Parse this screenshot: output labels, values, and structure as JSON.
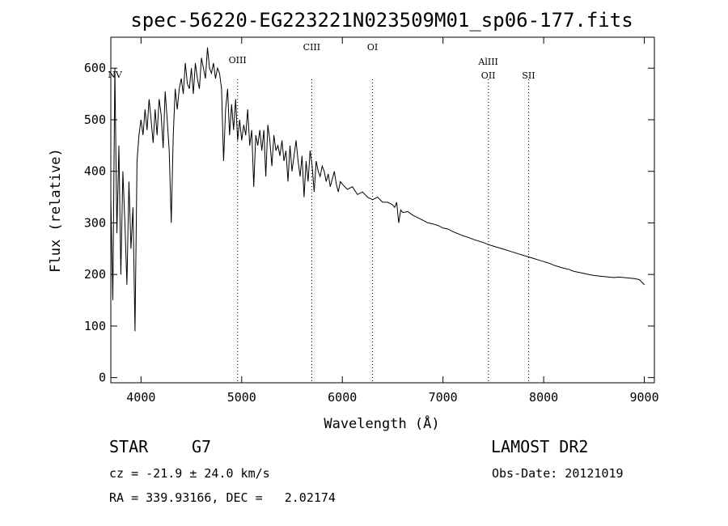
{
  "chart_data": {
    "type": "line",
    "title": "spec-56220-EG223221N023509M01_sp06-177.fits",
    "xlabel": "Wavelength (Å)",
    "ylabel": "Flux (relative)",
    "xlim": [
      3700,
      9100
    ],
    "ylim": [
      -10,
      660
    ],
    "x_ticks": [
      4000,
      5000,
      6000,
      7000,
      8000,
      9000
    ],
    "y_ticks": [
      0,
      100,
      200,
      300,
      400,
      500,
      600
    ],
    "grid": false,
    "series": [
      {
        "name": "spectrum",
        "x": [
          3700,
          3720,
          3740,
          3760,
          3780,
          3800,
          3820,
          3840,
          3860,
          3880,
          3900,
          3920,
          3940,
          3960,
          3980,
          4000,
          4020,
          4040,
          4060,
          4080,
          4100,
          4120,
          4140,
          4160,
          4180,
          4200,
          4220,
          4240,
          4260,
          4280,
          4300,
          4320,
          4340,
          4360,
          4380,
          4400,
          4420,
          4440,
          4460,
          4480,
          4500,
          4520,
          4540,
          4560,
          4580,
          4600,
          4620,
          4640,
          4660,
          4680,
          4700,
          4720,
          4740,
          4760,
          4780,
          4800,
          4820,
          4840,
          4860,
          4880,
          4900,
          4920,
          4940,
          4960,
          4980,
          5000,
          5020,
          5040,
          5060,
          5080,
          5100,
          5120,
          5140,
          5160,
          5180,
          5200,
          5220,
          5240,
          5260,
          5280,
          5300,
          5320,
          5340,
          5360,
          5380,
          5400,
          5420,
          5440,
          5460,
          5480,
          5500,
          5520,
          5540,
          5560,
          5580,
          5600,
          5620,
          5640,
          5660,
          5680,
          5700,
          5720,
          5740,
          5760,
          5780,
          5800,
          5820,
          5840,
          5860,
          5880,
          5900,
          5920,
          5940,
          5960,
          5980,
          6000,
          6050,
          6100,
          6150,
          6200,
          6250,
          6300,
          6350,
          6400,
          6450,
          6500,
          6520,
          6540,
          6560,
          6580,
          6600,
          6650,
          6700,
          6750,
          6800,
          6850,
          6900,
          6950,
          7000,
          7050,
          7100,
          7150,
          7200,
          7250,
          7300,
          7350,
          7400,
          7450,
          7500,
          7550,
          7600,
          7650,
          7700,
          7750,
          7800,
          7850,
          7900,
          7950,
          8000,
          8050,
          8100,
          8150,
          8200,
          8250,
          8300,
          8350,
          8400,
          8450,
          8500,
          8550,
          8600,
          8650,
          8700,
          8750,
          8800,
          8850,
          8900,
          8950,
          9000
        ],
        "y": [
          350,
          150,
          600,
          280,
          450,
          200,
          400,
          300,
          180,
          380,
          250,
          330,
          90,
          420,
          470,
          500,
          470,
          520,
          480,
          540,
          500,
          455,
          520,
          470,
          540,
          510,
          445,
          555,
          500,
          440,
          300,
          470,
          560,
          520,
          560,
          580,
          550,
          610,
          570,
          560,
          600,
          550,
          610,
          580,
          560,
          620,
          600,
          580,
          640,
          600,
          590,
          610,
          580,
          600,
          590,
          560,
          420,
          520,
          560,
          470,
          530,
          480,
          540,
          460,
          500,
          460,
          490,
          470,
          520,
          450,
          480,
          370,
          470,
          450,
          480,
          440,
          480,
          390,
          490,
          460,
          410,
          470,
          440,
          450,
          430,
          460,
          420,
          440,
          380,
          450,
          400,
          430,
          460,
          420,
          390,
          430,
          350,
          420,
          380,
          440,
          410,
          360,
          420,
          400,
          390,
          410,
          400,
          380,
          395,
          370,
          385,
          400,
          375,
          360,
          380,
          375,
          365,
          370,
          355,
          360,
          350,
          345,
          350,
          340,
          340,
          335,
          330,
          340,
          300,
          325,
          320,
          322,
          315,
          310,
          305,
          300,
          298,
          295,
          290,
          288,
          283,
          279,
          275,
          272,
          268,
          265,
          262,
          258,
          255,
          252,
          249,
          246,
          243,
          240,
          237,
          234,
          231,
          228,
          225,
          222,
          218,
          215,
          212,
          210,
          206,
          204,
          202,
          200,
          198,
          197,
          196,
          195,
          194,
          195,
          194,
          193,
          192,
          190,
          180
        ]
      }
    ],
    "annotations": [
      {
        "label": "NV",
        "x": 3740,
        "line": false
      },
      {
        "label": "OIII",
        "x": 4959,
        "line": true
      },
      {
        "label": "CIII",
        "x": 5696,
        "line": true
      },
      {
        "label": "OI",
        "x": 6300,
        "line": true
      },
      {
        "label": "AlIII",
        "x": 7450,
        "line": true
      },
      {
        "label": "OII",
        "x": 7450,
        "line": false
      },
      {
        "label": "SII",
        "x": 7850,
        "line": true
      }
    ]
  },
  "info": {
    "object_class": "STAR",
    "subclass": "G7",
    "survey": "LAMOST DR2",
    "cz": "cz = -21.9 ± 24.0 km/s",
    "obs_date": "Obs-Date: 20121019",
    "radec": "RA = 339.93166, DEC =   2.02174"
  }
}
